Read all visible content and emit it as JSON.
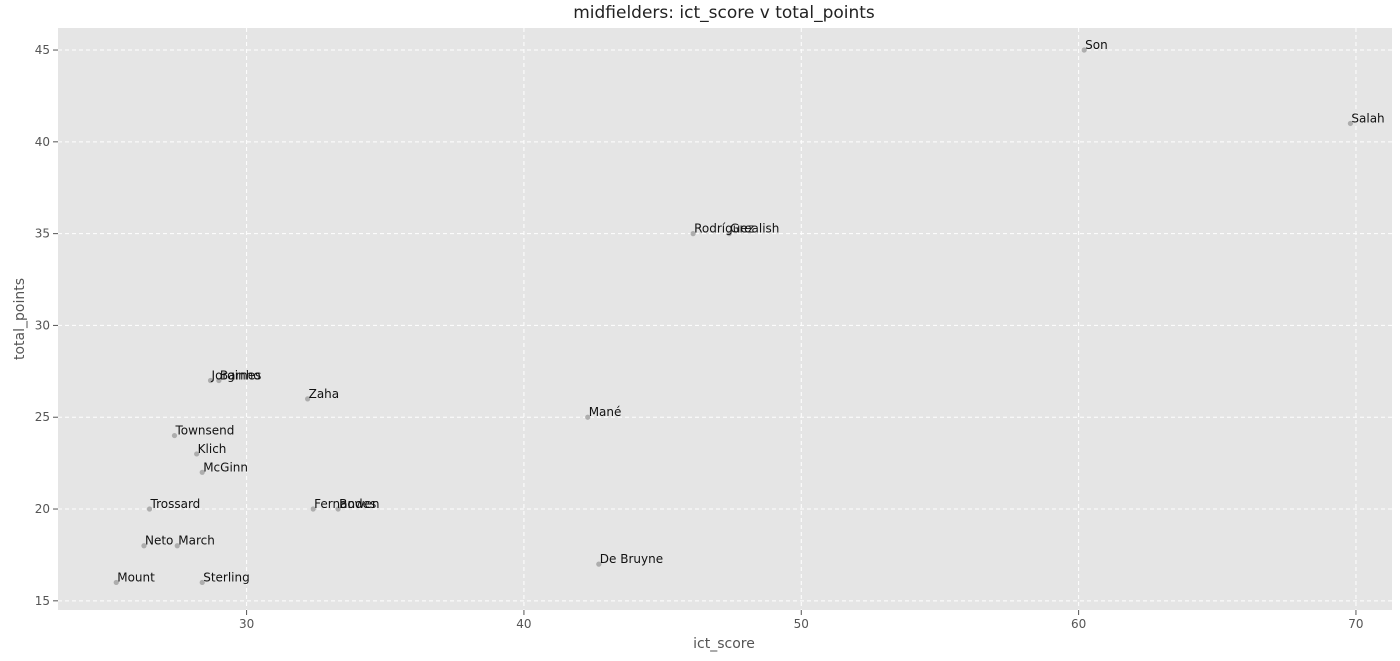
{
  "chart_data": {
    "type": "scatter",
    "title": "midfielders: ict_score v total_points",
    "xlabel": "ict_score",
    "ylabel": "total_points",
    "xlim": [
      23.2,
      71.3
    ],
    "ylim": [
      14.5,
      46.2
    ],
    "xticks": [
      30,
      40,
      50,
      60,
      70
    ],
    "yticks": [
      15,
      20,
      25,
      30,
      35,
      40,
      45
    ],
    "grid": true,
    "background": "#e5e5e5",
    "point_color": "#999999",
    "points": [
      {
        "label": "Son",
        "x": 60.2,
        "y": 45
      },
      {
        "label": "Salah",
        "x": 69.8,
        "y": 41
      },
      {
        "label": "Rodríguez",
        "x": 46.1,
        "y": 35
      },
      {
        "label": "Grealish",
        "x": 47.4,
        "y": 35
      },
      {
        "label": "Jorginho",
        "x": 28.7,
        "y": 27
      },
      {
        "label": "Barnes",
        "x": 29.0,
        "y": 27
      },
      {
        "label": "Zaha",
        "x": 32.2,
        "y": 26
      },
      {
        "label": "Mané",
        "x": 42.3,
        "y": 25
      },
      {
        "label": "Townsend",
        "x": 27.4,
        "y": 24
      },
      {
        "label": "Klich",
        "x": 28.2,
        "y": 23
      },
      {
        "label": "McGinn",
        "x": 28.4,
        "y": 22
      },
      {
        "label": "Trossard",
        "x": 26.5,
        "y": 20
      },
      {
        "label": "Fernandes",
        "x": 32.4,
        "y": 20
      },
      {
        "label": "Bowen",
        "x": 33.3,
        "y": 20
      },
      {
        "label": "Neto",
        "x": 26.3,
        "y": 18
      },
      {
        "label": "March",
        "x": 27.5,
        "y": 18
      },
      {
        "label": "De Bruyne",
        "x": 42.7,
        "y": 17
      },
      {
        "label": "Mount",
        "x": 25.3,
        "y": 16
      },
      {
        "label": "Sterling",
        "x": 28.4,
        "y": 16
      }
    ]
  }
}
